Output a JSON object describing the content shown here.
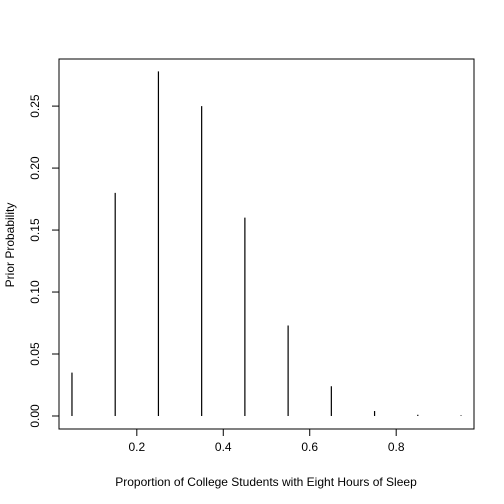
{
  "chart_data": {
    "type": "bar",
    "title": "",
    "xlabel": "Proportion of College Students with Eight Hours of Sleep",
    "ylabel": "Prior Probability",
    "x": [
      0.05,
      0.15,
      0.25,
      0.35,
      0.45,
      0.55,
      0.65,
      0.75,
      0.85,
      0.95
    ],
    "values": [
      0.035,
      0.18,
      0.278,
      0.25,
      0.16,
      0.073,
      0.024,
      0.004,
      0.001,
      0.0005
    ],
    "xlim": [
      0.02,
      0.98
    ],
    "ylim": [
      -0.0105,
      0.288
    ],
    "xticks": [
      "0.2",
      "0.4",
      "0.6",
      "0.8"
    ],
    "xtick_values": [
      0.2,
      0.4,
      0.6,
      0.8
    ],
    "yticks": [
      "0.00",
      "0.05",
      "0.10",
      "0.15",
      "0.20",
      "0.25"
    ],
    "ytick_values": [
      0,
      0.05,
      0.1,
      0.15,
      0.2,
      0.25
    ],
    "grid": false,
    "legend": "none",
    "bar_color": "#000000"
  }
}
